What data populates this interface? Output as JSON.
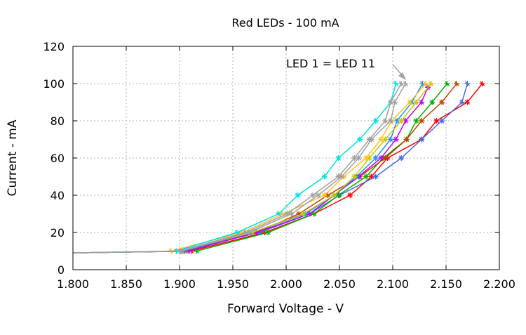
{
  "chart_data": {
    "type": "line",
    "title": "Red LEDs - 100 mA",
    "xlabel": "Forward Voltage - V",
    "ylabel": "Current - mA",
    "xlim": [
      1.8,
      2.2
    ],
    "ylim": [
      0,
      120
    ],
    "xticks": [
      "1.800",
      "1.850",
      "1.900",
      "1.950",
      "2.000",
      "2.050",
      "2.100",
      "2.150",
      "2.200"
    ],
    "yticks": [
      "0",
      "20",
      "40",
      "60",
      "80",
      "100",
      "120"
    ],
    "grid": true,
    "legend": "none",
    "annotation": {
      "text": "LED 1 = LED 11",
      "points_to": [
        2.112,
        100
      ],
      "color": "#a0a0a0"
    },
    "series": [
      {
        "color": "#ff0000",
        "points": [
          [
            1.8,
            9
          ],
          [
            1.911,
            10
          ],
          [
            1.98,
            20
          ],
          [
            2.026,
            30
          ],
          [
            2.06,
            40
          ],
          [
            2.08,
            50
          ],
          [
            2.095,
            60
          ],
          [
            2.127,
            70
          ],
          [
            2.141,
            80
          ],
          [
            2.17,
            90
          ],
          [
            2.184,
            100
          ]
        ]
      },
      {
        "color": "#4169e1",
        "points": [
          [
            1.8,
            9
          ],
          [
            1.901,
            10
          ],
          [
            1.975,
            20
          ],
          [
            2.022,
            30
          ],
          [
            2.05,
            40
          ],
          [
            2.084,
            50
          ],
          [
            2.108,
            60
          ],
          [
            2.127,
            70
          ],
          [
            2.146,
            80
          ],
          [
            2.165,
            90
          ],
          [
            2.17,
            100
          ]
        ]
      },
      {
        "color": "#00b000",
        "points": [
          [
            1.8,
            9
          ],
          [
            1.916,
            10
          ],
          [
            1.983,
            20
          ],
          [
            2.026,
            30
          ],
          [
            2.049,
            40
          ],
          [
            2.075,
            50
          ],
          [
            2.091,
            60
          ],
          [
            2.113,
            70
          ],
          [
            2.122,
            80
          ],
          [
            2.137,
            90
          ],
          [
            2.151,
            100
          ]
        ]
      },
      {
        "color": "#c04000",
        "points": [
          [
            1.8,
            9
          ],
          [
            1.905,
            10
          ],
          [
            1.972,
            20
          ],
          [
            2.012,
            30
          ],
          [
            2.039,
            40
          ],
          [
            2.069,
            50
          ],
          [
            2.093,
            60
          ],
          [
            2.113,
            70
          ],
          [
            2.127,
            80
          ],
          [
            2.146,
            90
          ],
          [
            2.16,
            100
          ]
        ]
      },
      {
        "color": "#c000ff",
        "points": [
          [
            1.8,
            9
          ],
          [
            1.908,
            10
          ],
          [
            1.972,
            20
          ],
          [
            2.022,
            30
          ],
          [
            2.045,
            40
          ],
          [
            2.068,
            50
          ],
          [
            2.089,
            60
          ],
          [
            2.103,
            70
          ],
          [
            2.112,
            80
          ],
          [
            2.127,
            90
          ],
          [
            2.133,
            98
          ]
        ]
      },
      {
        "color": "#1e90ff",
        "points": [
          [
            1.8,
            9
          ],
          [
            1.903,
            10
          ],
          [
            1.968,
            20
          ],
          [
            2.018,
            30
          ],
          [
            2.045,
            40
          ],
          [
            2.066,
            50
          ],
          [
            2.084,
            60
          ],
          [
            2.098,
            70
          ],
          [
            2.104,
            80
          ],
          [
            2.118,
            90
          ],
          [
            2.128,
            100
          ]
        ]
      },
      {
        "color": "#c8c800",
        "points": [
          [
            1.8,
            9
          ],
          [
            1.9,
            10
          ],
          [
            1.968,
            20
          ],
          [
            2.016,
            30
          ],
          [
            2.045,
            40
          ],
          [
            2.064,
            50
          ],
          [
            2.078,
            60
          ],
          [
            2.093,
            70
          ],
          [
            2.108,
            80
          ],
          [
            2.122,
            90
          ],
          [
            2.136,
            100
          ]
        ]
      },
      {
        "color": "#ffc020",
        "points": [
          [
            1.8,
            9
          ],
          [
            1.892,
            10
          ],
          [
            1.959,
            20
          ],
          [
            1.997,
            30
          ],
          [
            2.036,
            40
          ],
          [
            2.054,
            50
          ],
          [
            2.075,
            60
          ],
          [
            2.089,
            70
          ],
          [
            2.099,
            80
          ],
          [
            2.116,
            90
          ],
          [
            2.131,
            100
          ]
        ]
      },
      {
        "color": "#00e0e0",
        "points": [
          [
            1.8,
            9
          ],
          [
            1.897,
            10
          ],
          [
            1.954,
            20
          ],
          [
            1.993,
            30
          ],
          [
            2.011,
            40
          ],
          [
            2.036,
            50
          ],
          [
            2.049,
            60
          ],
          [
            2.069,
            70
          ],
          [
            2.084,
            80
          ],
          [
            2.098,
            90
          ],
          [
            2.103,
            100
          ]
        ]
      },
      {
        "color": "#a0a0a0",
        "points": [
          [
            1.8,
            9
          ],
          [
            1.9,
            10
          ],
          [
            1.962,
            20
          ],
          [
            2.001,
            30
          ],
          [
            2.025,
            40
          ],
          [
            2.049,
            50
          ],
          [
            2.064,
            60
          ],
          [
            2.078,
            70
          ],
          [
            2.093,
            80
          ],
          [
            2.098,
            90
          ],
          [
            2.108,
            100
          ]
        ]
      },
      {
        "color": "#a0a0a0",
        "points": [
          [
            1.8,
            9
          ],
          [
            1.902,
            10
          ],
          [
            1.965,
            20
          ],
          [
            2.005,
            30
          ],
          [
            2.03,
            40
          ],
          [
            2.052,
            50
          ],
          [
            2.068,
            60
          ],
          [
            2.08,
            70
          ],
          [
            2.098,
            80
          ],
          [
            2.102,
            90
          ],
          [
            2.112,
            100
          ]
        ]
      }
    ]
  }
}
